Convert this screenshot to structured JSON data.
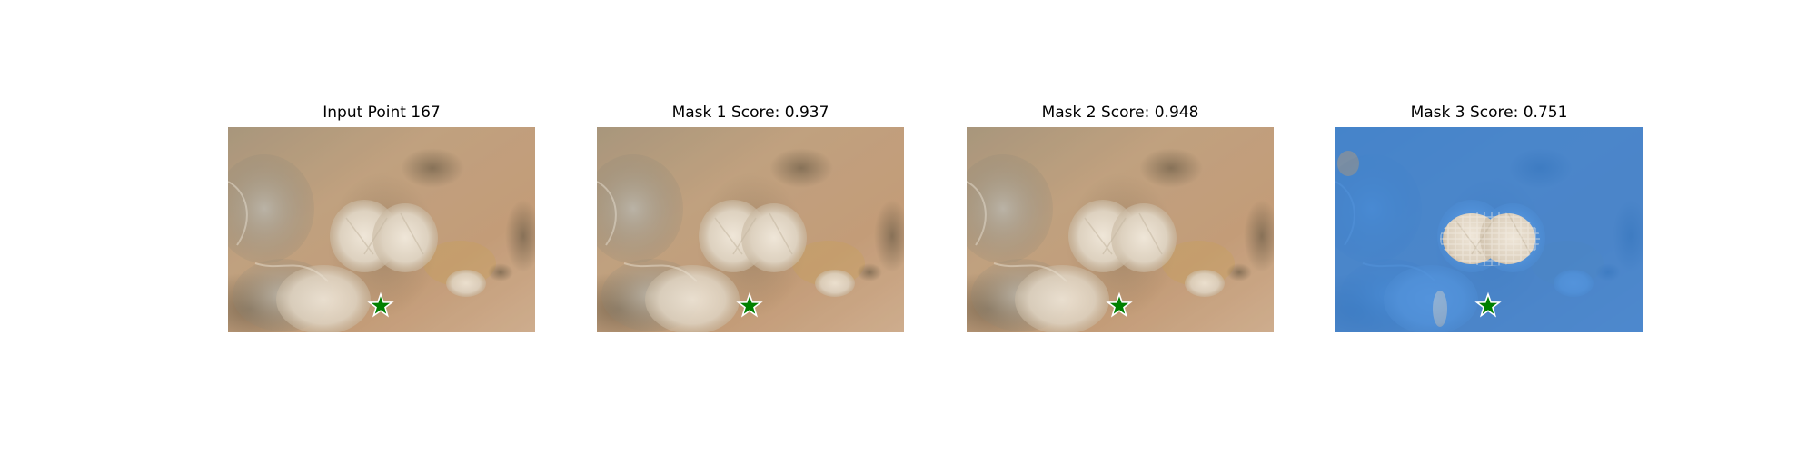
{
  "figure": {
    "panels": [
      {
        "title": "Input Point 167",
        "mask": "none"
      },
      {
        "title": "Mask 1 Score: 0.937",
        "mask": "none"
      },
      {
        "title": "Mask 2 Score: 0.948",
        "mask": "none"
      },
      {
        "title": "Mask 3 Score: 0.751",
        "mask": "blue-overlay"
      }
    ],
    "marker": {
      "icon": "star-icon",
      "color": "#008000",
      "edge": "#ffffff"
    },
    "colors": {
      "ground": "#c9a883",
      "mask_blue": "#1e78e6",
      "shrub": "#ddd2c2"
    }
  }
}
